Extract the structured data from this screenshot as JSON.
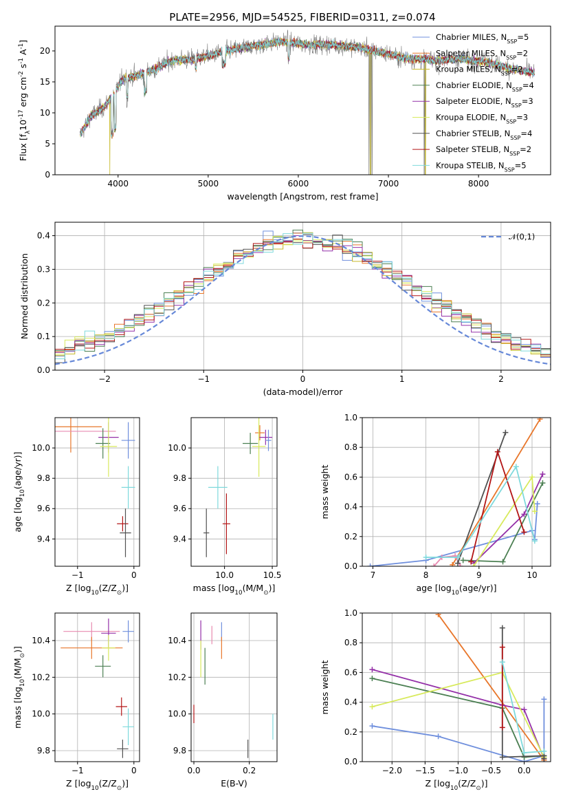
{
  "figure": {
    "title": "PLATE=2956, MJD=54525, FIBERID=0311, z=0.074"
  },
  "colors": {
    "chabrier_miles": "#6f8fdd",
    "salpeter_miles": "#e8762a",
    "kroupa_miles": "#c6b92a",
    "chabrier_elodie": "#4b7f52",
    "salpeter_elodie": "#9430a8",
    "kroupa_elodie": "#d8ea5c",
    "chabrier_stelib": "#505050",
    "salpeter_stelib": "#b31516",
    "kroupa_stelib": "#7ed9dc",
    "data": "#7a7a7a",
    "gaussian": "#6688d8",
    "pink": "#e88ab0"
  },
  "chart_data": [
    {
      "id": "spectrum",
      "type": "line",
      "title": "PLATE=2956, MJD=54525, FIBERID=0311, z=0.074",
      "xlabel": "wavelength [Angstrom, rest frame]",
      "ylabel": "Flux [f$_\\lambda$10$^{-17}$ erg cm$^{-2}$ s$^{-1}$ A$^{-1}$]",
      "xlim": [
        3300,
        8800
      ],
      "ylim": [
        0,
        24
      ],
      "xticks": [
        "4000",
        "5000",
        "6000",
        "7000",
        "8000"
      ],
      "yticks": [
        "0",
        "5",
        "10",
        "15",
        "20"
      ],
      "continuum_anchors": {
        "x": [
          3580,
          3700,
          3850,
          3950,
          4050,
          4200,
          4400,
          4600,
          4800,
          5000,
          5200,
          5500,
          5800,
          6100,
          6400,
          6700,
          7000,
          7200,
          7500,
          7800,
          8100,
          8400,
          8600
        ],
        "y": [
          6.5,
          9.5,
          11.0,
          13.0,
          15.5,
          16.0,
          17.0,
          18.5,
          18.6,
          19.2,
          20.0,
          20.8,
          21.5,
          21.0,
          21.0,
          20.5,
          19.5,
          18.8,
          18.5,
          18.7,
          18.2,
          17.0,
          16.5
        ]
      },
      "legend_position": "right",
      "legend": [
        {
          "label": "Chabrier MILES, N$_{SSP}$=5",
          "color_key": "chabrier_miles"
        },
        {
          "label": "Salpeter MILES, N$_{SSP}$=2",
          "color_key": "salpeter_miles"
        },
        {
          "label": "Kroupa MILES, N$_{SSP}$=2",
          "color_key": "kroupa_miles"
        },
        {
          "label": "Chabrier ELODIE, N$_{SSP}$=4",
          "color_key": "chabrier_elodie"
        },
        {
          "label": "Salpeter ELODIE, N$_{SSP}$=3",
          "color_key": "salpeter_elodie"
        },
        {
          "label": "Kroupa ELODIE, N$_{SSP}$=3",
          "color_key": "kroupa_elodie"
        },
        {
          "label": "Chabrier STELIB, N$_{SSP}$=4",
          "color_key": "chabrier_stelib"
        },
        {
          "label": "Salpeter STELIB, N$_{SSP}$=2",
          "color_key": "salpeter_stelib"
        },
        {
          "label": "Kroupa STELIB, N$_{SSP}$=5",
          "color_key": "kroupa_stelib"
        }
      ]
    },
    {
      "id": "residuals",
      "type": "line",
      "xlabel": "(data-model)/error",
      "ylabel": "Normed distribution",
      "xlim": [
        -2.5,
        2.5
      ],
      "ylim": [
        0,
        0.44
      ],
      "xticks": [
        "−2",
        "−1",
        "0",
        "1",
        "2"
      ],
      "yticks": [
        "0.0",
        "0.1",
        "0.2",
        "0.3",
        "0.4"
      ],
      "grid": true,
      "legend_position": "top-right",
      "legend": [
        {
          "label": "$\\mathcal{N}(0,1)$",
          "color_key": "gaussian"
        }
      ],
      "gaussian": {
        "mu": 0,
        "sigma": 1
      }
    },
    {
      "id": "age_vs_Z",
      "type": "scatter",
      "xlabel": "Z [log$_{10}$(Z/Z$_\\odot$)]",
      "ylabel": "age  [log$_{10}$(age/yr)]",
      "xlim": [
        -1.4,
        0.1
      ],
      "ylim": [
        9.22,
        10.2
      ],
      "xticks": [
        "−1",
        "0"
      ],
      "yticks": [
        "9.4",
        "9.6",
        "9.8",
        "10.0"
      ],
      "grid": true,
      "points": [
        {
          "x": -1.12,
          "y": 10.14,
          "xerr": 0.55,
          "yerr": 0.17,
          "c": "salpeter_miles"
        },
        {
          "x": -1.0,
          "y": 10.11,
          "xerr": 0.68,
          "yerr": 0.0,
          "c": "pink"
        },
        {
          "x": -0.45,
          "y": 10.07,
          "xerr": 0.18,
          "yerr": 0.1,
          "c": "salpeter_elodie"
        },
        {
          "x": -0.1,
          "y": 10.05,
          "xerr": 0.12,
          "yerr": 0.12,
          "c": "chabrier_miles"
        },
        {
          "x": -0.55,
          "y": 10.03,
          "xerr": 0.13,
          "yerr": 0.1,
          "c": "chabrier_elodie"
        },
        {
          "x": -0.45,
          "y": 10.01,
          "xerr": 0.15,
          "yerr": 0.2,
          "c": "kroupa_elodie"
        },
        {
          "x": -0.1,
          "y": 9.74,
          "xerr": 0.12,
          "yerr": 0.14,
          "c": "kroupa_stelib"
        },
        {
          "x": -0.2,
          "y": 9.5,
          "xerr": 0.1,
          "yerr": 0.05,
          "c": "salpeter_stelib"
        },
        {
          "x": -0.15,
          "y": 9.44,
          "xerr": 0.1,
          "yerr": 0.16,
          "c": "chabrier_stelib"
        }
      ]
    },
    {
      "id": "age_vs_mass",
      "type": "scatter",
      "xlabel": "mass [log$_{10}$(M/M$_\\odot$)]",
      "ylabel": "",
      "xlim": [
        9.65,
        10.55
      ],
      "ylim": [
        9.22,
        10.2
      ],
      "xticks": [
        "10.0",
        "10.5"
      ],
      "yticks": [
        "9.4",
        "9.6",
        "9.8",
        "10.0"
      ],
      "grid": true,
      "points": [
        {
          "x": 10.37,
          "y": 10.1,
          "xerr": 0.05,
          "yerr": 0.05,
          "c": "salpeter_miles"
        },
        {
          "x": 10.43,
          "y": 10.07,
          "xerr": 0.07,
          "yerr": 0.05,
          "c": "salpeter_elodie"
        },
        {
          "x": 10.46,
          "y": 10.05,
          "xerr": 0.03,
          "yerr": 0.07,
          "c": "chabrier_miles"
        },
        {
          "x": 10.27,
          "y": 10.03,
          "xerr": 0.08,
          "yerr": 0.07,
          "c": "chabrier_elodie"
        },
        {
          "x": 10.36,
          "y": 10.01,
          "xerr": 0.07,
          "yerr": 0.2,
          "c": "kroupa_elodie"
        },
        {
          "x": 9.93,
          "y": 9.74,
          "xerr": 0.1,
          "yerr": 0.14,
          "c": "kroupa_stelib"
        },
        {
          "x": 10.02,
          "y": 9.5,
          "xerr": 0.04,
          "yerr": 0.2,
          "c": "salpeter_stelib"
        },
        {
          "x": 9.81,
          "y": 9.44,
          "xerr": 0.03,
          "yerr": 0.16,
          "c": "chabrier_stelib"
        }
      ]
    },
    {
      "id": "weight_vs_age",
      "type": "line",
      "xlabel": "age  [log$_{10}$(age/yr)]",
      "ylabel": "mass weight",
      "xlim": [
        6.8,
        10.35
      ],
      "ylim": [
        0,
        1.0
      ],
      "xticks": [
        "7",
        "8",
        "9",
        "10"
      ],
      "yticks": [
        "0.0",
        "0.2",
        "0.4",
        "0.6",
        "0.8",
        "1.0"
      ],
      "grid": true,
      "series": [
        {
          "c": "chabrier_miles",
          "x": [
            6.95,
            8.0,
            10.0,
            10.05,
            10.1
          ],
          "y": [
            0.0,
            0.04,
            0.24,
            0.18,
            0.42
          ]
        },
        {
          "c": "salpeter_miles",
          "x": [
            8.5,
            10.15
          ],
          "y": [
            0.01,
            0.99
          ]
        },
        {
          "c": "pink",
          "x": [
            8.15,
            8.3,
            8.55,
            8.65
          ],
          "y": [
            0.0,
            0.06,
            0.07,
            0.0
          ]
        },
        {
          "c": "chabrier_elodie",
          "x": [
            8.7,
            9.45,
            10.2
          ],
          "y": [
            0.04,
            0.03,
            0.56
          ]
        },
        {
          "c": "salpeter_elodie",
          "x": [
            8.9,
            9.85,
            10.2
          ],
          "y": [
            0.02,
            0.35,
            0.62
          ]
        },
        {
          "c": "kroupa_elodie",
          "x": [
            8.9,
            10.0,
            10.05
          ],
          "y": [
            0.0,
            0.6,
            0.37
          ]
        },
        {
          "c": "chabrier_stelib",
          "x": [
            8.6,
            9.5
          ],
          "y": [
            0.02,
            0.9
          ]
        },
        {
          "c": "salpeter_stelib",
          "x": [
            8.85,
            9.35,
            9.85
          ],
          "y": [
            0.03,
            0.77,
            0.23
          ]
        },
        {
          "c": "kroupa_stelib",
          "x": [
            8.0,
            8.6,
            9.7,
            10.05
          ],
          "y": [
            0.06,
            0.06,
            0.67,
            0.17
          ]
        }
      ]
    },
    {
      "id": "mass_vs_Z",
      "type": "scatter",
      "xlabel": "Z [log$_{10}$(Z/Z$_\\odot$)]",
      "ylabel": "mass [log$_{10}$(M/M$_\\odot$)]",
      "xlim": [
        -1.4,
        0.1
      ],
      "ylim": [
        9.74,
        10.55
      ],
      "xticks": [
        "−1",
        "0"
      ],
      "yticks": [
        "9.8",
        "10.0",
        "10.2",
        "10.4"
      ],
      "grid": true,
      "points": [
        {
          "x": -0.75,
          "y": 10.45,
          "xerr": 0.5,
          "yerr": 0.05,
          "c": "pink"
        },
        {
          "x": -0.45,
          "y": 10.44,
          "xerr": 0.13,
          "yerr": 0.08,
          "c": "salpeter_elodie"
        },
        {
          "x": -0.1,
          "y": 10.45,
          "xerr": 0.1,
          "yerr": 0.06,
          "c": "chabrier_miles"
        },
        {
          "x": -0.75,
          "y": 10.36,
          "xerr": 0.55,
          "yerr": 0.06,
          "c": "salpeter_miles"
        },
        {
          "x": -0.45,
          "y": 10.36,
          "xerr": 0.12,
          "yerr": 0.07,
          "c": "kroupa_elodie"
        },
        {
          "x": -0.55,
          "y": 10.26,
          "xerr": 0.14,
          "yerr": 0.06,
          "c": "chabrier_elodie"
        },
        {
          "x": -0.22,
          "y": 10.04,
          "xerr": 0.1,
          "yerr": 0.05,
          "c": "salpeter_stelib"
        },
        {
          "x": -0.1,
          "y": 9.93,
          "xerr": 0.1,
          "yerr": 0.1,
          "c": "kroupa_stelib"
        },
        {
          "x": -0.2,
          "y": 9.81,
          "xerr": 0.1,
          "yerr": 0.05,
          "c": "chabrier_stelib"
        }
      ]
    },
    {
      "id": "mass_vs_ebv",
      "type": "scatter",
      "xlabel": "E(B-V)",
      "ylabel": "",
      "xlim": [
        -0.01,
        0.3
      ],
      "ylim": [
        9.74,
        10.55
      ],
      "xticks": [
        "0.0",
        "0.2"
      ],
      "yticks": [
        "9.8",
        "10.0",
        "10.2",
        "10.4"
      ],
      "grid": true,
      "points": [
        {
          "x": 0.0,
          "y": 10.0,
          "xerr": 0,
          "yerr": 0.05,
          "c": "salpeter_stelib"
        },
        {
          "x": 0.025,
          "y": 10.43,
          "xerr": 0,
          "yerr": 0.08,
          "c": "salpeter_elodie"
        },
        {
          "x": 0.025,
          "y": 10.3,
          "xerr": 0,
          "yerr": 0.1,
          "c": "kroupa_elodie"
        },
        {
          "x": 0.04,
          "y": 10.26,
          "xerr": 0,
          "yerr": 0.1,
          "c": "chabrier_elodie"
        },
        {
          "x": 0.065,
          "y": 10.43,
          "xerr": 0,
          "yerr": 0.05,
          "c": "pink"
        },
        {
          "x": 0.1,
          "y": 10.45,
          "xerr": 0,
          "yerr": 0.05,
          "c": "chabrier_miles"
        },
        {
          "x": 0.1,
          "y": 10.36,
          "xerr": 0,
          "yerr": 0.06,
          "c": "salpeter_miles"
        },
        {
          "x": 0.195,
          "y": 9.81,
          "xerr": 0,
          "yerr": 0.05,
          "c": "chabrier_stelib"
        },
        {
          "x": 0.285,
          "y": 9.93,
          "xerr": 0,
          "yerr": 0.07,
          "c": "kroupa_stelib"
        }
      ]
    },
    {
      "id": "weight_vs_Z",
      "type": "line",
      "xlabel": "Z [log$_{10}$(Z/Z$_\\odot$)]",
      "ylabel": "mass weight",
      "xlim": [
        -2.45,
        0.4
      ],
      "ylim": [
        0,
        1.0
      ],
      "xticks": [
        "−2.0",
        "−1.5",
        "−1.0",
        "−0.5",
        "0.0"
      ],
      "yticks": [
        "0.0",
        "0.2",
        "0.4",
        "0.6",
        "0.8",
        "1.0"
      ],
      "grid": true,
      "series": [
        {
          "c": "chabrier_miles",
          "x": [
            -2.3,
            -1.3,
            0.0,
            0.3,
            0.3
          ],
          "y": [
            0.24,
            0.17,
            0.0,
            0.04,
            0.42
          ]
        },
        {
          "c": "salpeter_miles",
          "x": [
            -1.3,
            0.3
          ],
          "y": [
            0.99,
            0.01
          ]
        },
        {
          "c": "chabrier_elodie",
          "x": [
            -2.3,
            -0.33,
            0.0,
            0.3
          ],
          "y": [
            0.56,
            0.36,
            0.03,
            0.04
          ]
        },
        {
          "c": "salpeter_elodie",
          "x": [
            -2.3,
            -0.33,
            0.0,
            0.3
          ],
          "y": [
            0.62,
            0.38,
            0.35,
            0.02
          ]
        },
        {
          "c": "kroupa_elodie",
          "x": [
            -2.3,
            -0.33,
            0.3
          ],
          "y": [
            0.37,
            0.6,
            0.03
          ]
        },
        {
          "c": "chabrier_stelib",
          "x": [
            -0.33,
            -0.33,
            0.3,
            0.3
          ],
          "y": [
            0.9,
            0.03,
            0.04,
            0.02
          ]
        },
        {
          "c": "salpeter_stelib",
          "x": [
            -0.33,
            -0.33
          ],
          "y": [
            0.77,
            0.23
          ]
        },
        {
          "c": "kroupa_stelib",
          "x": [
            -0.33,
            0.0,
            0.3
          ],
          "y": [
            0.67,
            0.06,
            0.07
          ]
        }
      ]
    }
  ]
}
